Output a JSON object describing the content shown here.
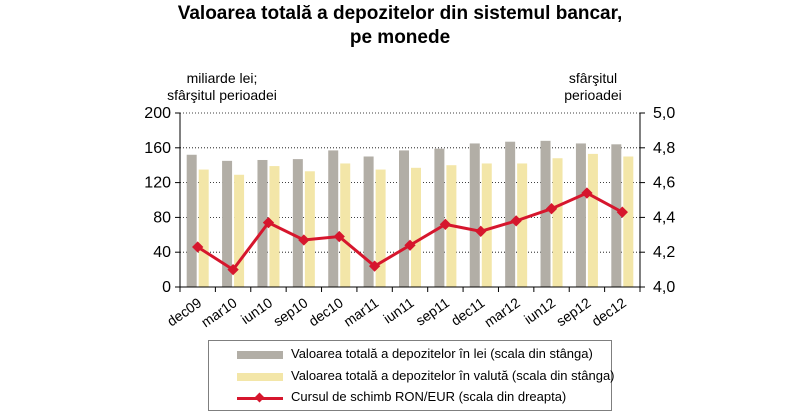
{
  "title_line1": "Valoarea totală a depozitelor din sistemul bancar,",
  "title_line2": "pe monede",
  "left_axis_unit_line1": "miliarde lei;",
  "left_axis_unit_line2": "sfârşitul perioadei",
  "right_axis_unit_line1": "sfârşitul",
  "right_axis_unit_line2": "perioadei",
  "colors": {
    "lei": "#b2aea6",
    "valuta": "#f3e6a8",
    "rate": "#d6162d",
    "grid": "#000000"
  },
  "chart_data": {
    "type": "bar+line",
    "categories": [
      "dec09",
      "mar10",
      "iun10",
      "sep10",
      "dec10",
      "mar11",
      "iun11",
      "sep11",
      "dec11",
      "mar12",
      "iun12",
      "sep12",
      "dec12"
    ],
    "y_left": {
      "min": 0,
      "max": 200,
      "ticks": [
        "0",
        "40",
        "80",
        "120",
        "160",
        "200"
      ]
    },
    "y_right": {
      "min": 4.0,
      "max": 5.0,
      "ticks": [
        "4,0",
        "4,2",
        "4,4",
        "4,6",
        "4,8",
        "5,0"
      ]
    },
    "series": [
      {
        "name": "Valoarea totală a depozitelor în lei (scala din stânga)",
        "type": "bar",
        "axis": "left",
        "values": [
          152,
          145,
          146,
          147,
          157,
          150,
          157,
          159,
          165,
          167,
          168,
          165,
          164
        ]
      },
      {
        "name": "Valoarea totală a depozitelor în valută (scala din stânga)",
        "type": "bar",
        "axis": "left",
        "values": [
          135,
          129,
          139,
          133,
          142,
          135,
          137,
          140,
          142,
          142,
          148,
          153,
          150
        ]
      },
      {
        "name": "Cursul de schimb RON/EUR (scala din dreapta)",
        "type": "line",
        "axis": "right",
        "values": [
          4.23,
          4.1,
          4.37,
          4.27,
          4.29,
          4.12,
          4.24,
          4.36,
          4.32,
          4.38,
          4.45,
          4.54,
          4.43
        ]
      }
    ],
    "legend_position": "bottom"
  }
}
